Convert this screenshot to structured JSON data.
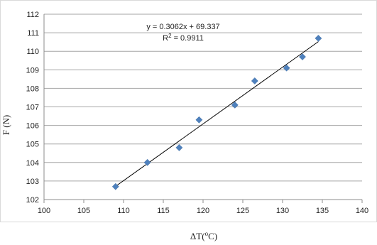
{
  "chart_data": {
    "type": "scatter",
    "title": "",
    "xlabel_prefix": "ΔT(",
    "xlabel_sup": "o",
    "xlabel_suffix": "C)",
    "ylabel": "F (N)",
    "xlim": [
      100,
      140
    ],
    "ylim": [
      102,
      112
    ],
    "x_ticks": [
      "100",
      "105",
      "110",
      "115",
      "120",
      "125",
      "130",
      "135",
      "140"
    ],
    "y_ticks": [
      "102",
      "103",
      "104",
      "105",
      "106",
      "107",
      "108",
      "109",
      "110",
      "111",
      "112"
    ],
    "grid": "horizontal",
    "legend": "none",
    "marker_color": "#4F81BD",
    "trendline_color": "#000000",
    "points": [
      {
        "x": 109,
        "y": 102.7
      },
      {
        "x": 113,
        "y": 104.0
      },
      {
        "x": 117,
        "y": 104.8
      },
      {
        "x": 119.5,
        "y": 106.3
      },
      {
        "x": 124,
        "y": 107.1
      },
      {
        "x": 126.5,
        "y": 108.4
      },
      {
        "x": 130.5,
        "y": 109.1
      },
      {
        "x": 132.5,
        "y": 109.7
      },
      {
        "x": 134.5,
        "y": 110.7
      }
    ],
    "trendline": {
      "slope": 0.3062,
      "intercept": 69.337,
      "x_start": 109,
      "x_end": 134.5,
      "equation": "y = 0.3062x + 69.337",
      "r2_base": "R",
      "r2_sup": "2",
      "r2_value": " = 0.9911"
    }
  }
}
